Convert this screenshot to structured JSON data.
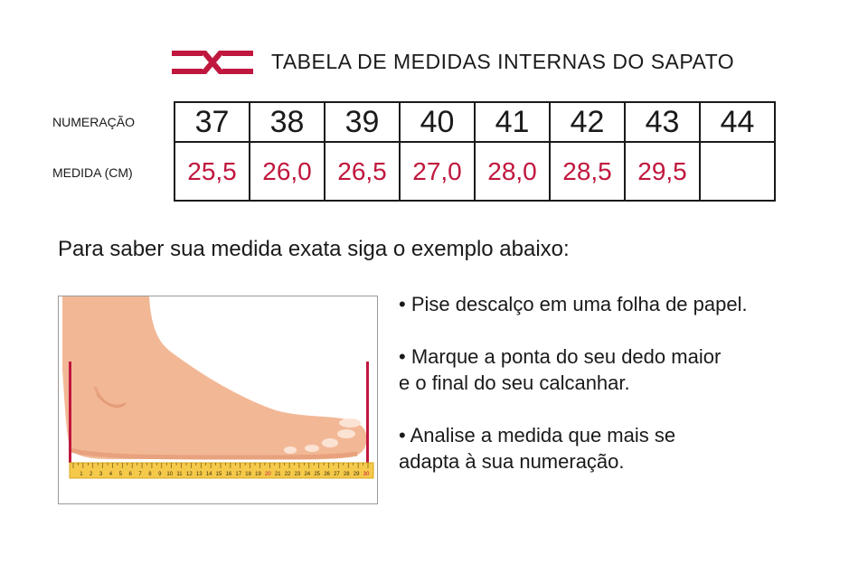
{
  "header": {
    "logo_icon": "crossed-stripes-logo-icon",
    "title": "TABELA DE MEDIDAS INTERNAS DO SAPATO"
  },
  "table": {
    "row_labels": {
      "numeracao": "NUMERAÇÃO",
      "medida": "MEDIDA (CM)"
    },
    "sizes": [
      "37",
      "38",
      "39",
      "40",
      "41",
      "42",
      "43",
      "44"
    ],
    "measures": [
      "25,5",
      "26,0",
      "26,5",
      "27,0",
      "28,0",
      "28,5",
      "29,5",
      ""
    ]
  },
  "instruction": "Para saber sua medida exata siga o exemplo abaixo:",
  "illustration": {
    "icon": "foot-on-ruler-icon",
    "ruler_numbers": [
      "1",
      "2",
      "3",
      "4",
      "5",
      "6",
      "7",
      "8",
      "9",
      "10",
      "11",
      "12",
      "13",
      "14",
      "15",
      "16",
      "17",
      "18",
      "19",
      "20",
      "21",
      "22",
      "23",
      "24",
      "25",
      "26",
      "27",
      "28",
      "29",
      "30"
    ],
    "ruler_highlight": [
      "20",
      "30"
    ]
  },
  "bullets": [
    {
      "lines": [
        "• Pise descalço em uma folha de papel."
      ]
    },
    {
      "lines": [
        "• Marque a ponta do seu dedo maior",
        "e o final do seu calcanhar."
      ]
    },
    {
      "lines": [
        "• Analise a medida que mais se",
        "adapta à sua numeração."
      ]
    }
  ],
  "colors": {
    "accent": "#c0173e",
    "text": "#1a1a1a",
    "foot_skin": "#f2b896",
    "ruler": "#f5c94a"
  }
}
